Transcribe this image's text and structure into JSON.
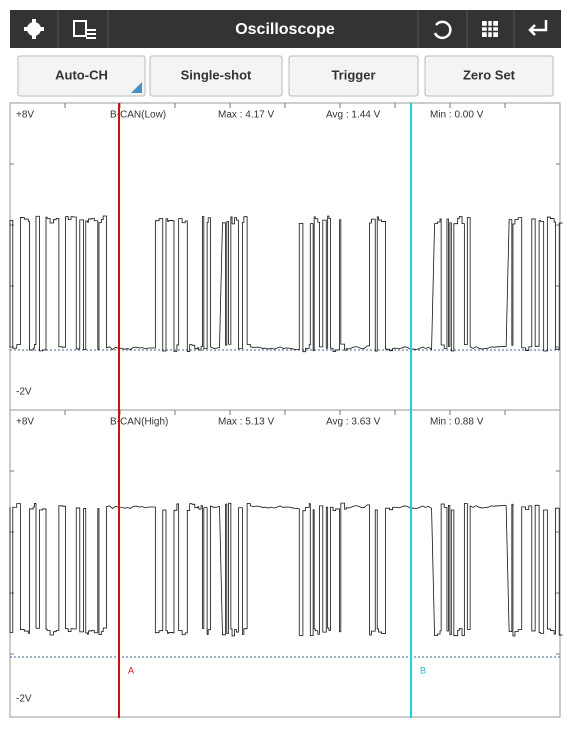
{
  "toolbar": {
    "title": "Oscilloscope"
  },
  "buttons": [
    "Auto-CH",
    "Single-shot",
    "Trigger",
    "Zero Set"
  ],
  "channels": [
    {
      "top": "+8V",
      "name": "B-CAN(Low)",
      "max": "Max : 4.17 V",
      "avg": "Avg : 1.44 V",
      "min": "Min : 0.00 V",
      "bottom": "-2V"
    },
    {
      "top": "+8V",
      "name": "B-CAN(High)",
      "max": "Max : 5.13 V",
      "avg": "Avg : 3.63 V",
      "min": "Min : 0.88 V",
      "bottom": "-2V"
    }
  ],
  "cursors": [
    "A",
    "B"
  ]
}
